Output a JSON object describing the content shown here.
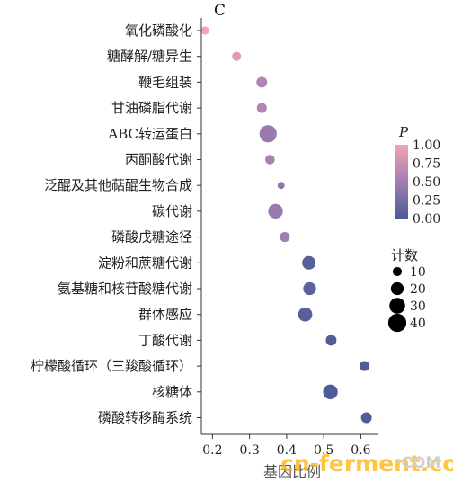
{
  "chart_data": {
    "type": "scatter",
    "panel_label": "C",
    "xlabel": "基因比例",
    "xlim": [
      0.17,
      0.645
    ],
    "x_ticks": [
      "0.2",
      "0.3",
      "0.4",
      "0.5",
      "0.6"
    ],
    "categories": [
      "氧化磷酸化",
      "糖酵解/糖异生",
      "鞭毛组装",
      "甘油磷脂代谢",
      "ABC转运蛋白",
      "丙酮酸代谢",
      "泛醌及其他萜醌生物合成",
      "碳代谢",
      "磷酸戊糖途径",
      "淀粉和蔗糖代谢",
      "氨基糖和核苷酸糖代谢",
      "群体感应",
      "丁酸代谢",
      "柠檬酸循环（三羧酸循环）",
      "核糖体",
      "磷酸转移酶系统"
    ],
    "points": [
      {
        "x": 0.18,
        "count": 8,
        "p": 1.0
      },
      {
        "x": 0.265,
        "count": 10,
        "p": 0.88
      },
      {
        "x": 0.333,
        "count": 14,
        "p": 0.6
      },
      {
        "x": 0.333,
        "count": 12,
        "p": 0.6
      },
      {
        "x": 0.35,
        "count": 36,
        "p": 0.45
      },
      {
        "x": 0.355,
        "count": 11,
        "p": 0.55
      },
      {
        "x": 0.385,
        "count": 6,
        "p": 0.4
      },
      {
        "x": 0.37,
        "count": 26,
        "p": 0.45
      },
      {
        "x": 0.395,
        "count": 12,
        "p": 0.5
      },
      {
        "x": 0.46,
        "count": 22,
        "p": 0.08
      },
      {
        "x": 0.462,
        "count": 20,
        "p": 0.1
      },
      {
        "x": 0.45,
        "count": 24,
        "p": 0.08
      },
      {
        "x": 0.52,
        "count": 14,
        "p": 0.05
      },
      {
        "x": 0.61,
        "count": 12,
        "p": 0.03
      },
      {
        "x": 0.518,
        "count": 26,
        "p": 0.03
      },
      {
        "x": 0.615,
        "count": 14,
        "p": 0.03
      }
    ],
    "color_legend": {
      "title": "P",
      "ticks": [
        "1.00",
        "0.75",
        "0.50",
        "0.25",
        "0.00"
      ],
      "low_color": "#4a5a96",
      "high_color": "#f3a4b3"
    },
    "size_legend": {
      "title": "计数",
      "entries": [
        "10",
        "20",
        "30",
        "40"
      ]
    }
  },
  "watermark": {
    "left": "cn-ferment.com",
    "right": "·COM"
  }
}
